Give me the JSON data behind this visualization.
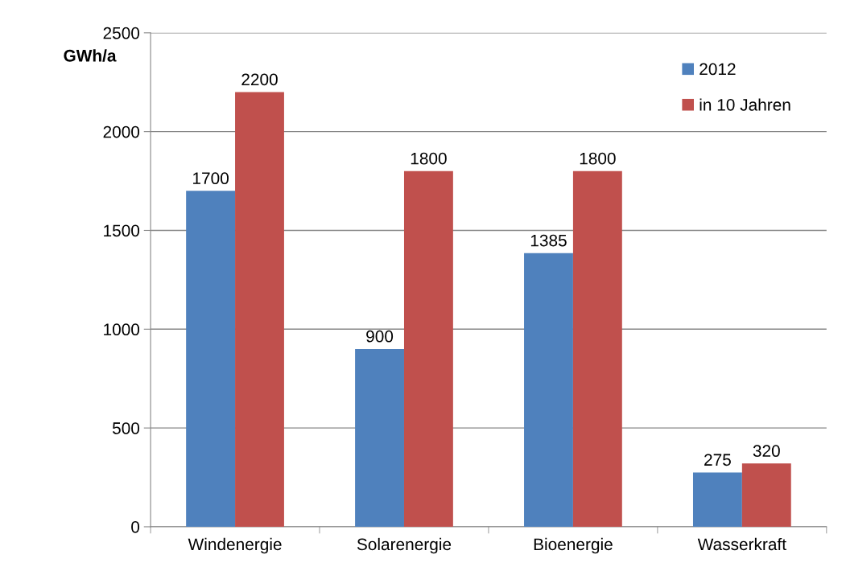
{
  "chart_data": {
    "type": "bar",
    "ylabel": "GWh/a",
    "categories": [
      "Windenergie",
      "Solarenergie",
      "Bioenergie",
      "Wasserkraft"
    ],
    "series": [
      {
        "name": "2012",
        "color": "#4f81bd",
        "values": [
          1700,
          900,
          1385,
          275
        ]
      },
      {
        "name": "in 10 Jahren",
        "color": "#c0504d",
        "values": [
          2200,
          1800,
          1800,
          320
        ]
      }
    ],
    "ylim": [
      0,
      2500
    ],
    "yticks": [
      0,
      500,
      1000,
      1500,
      2000,
      2500
    ],
    "grid": "y",
    "legend": "top right",
    "data_labels": true
  }
}
